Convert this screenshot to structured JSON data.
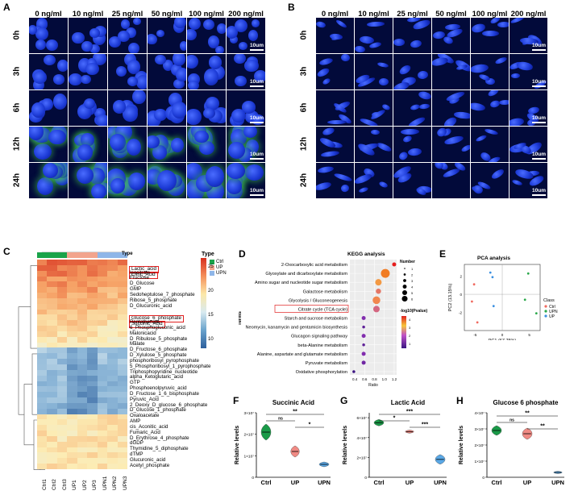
{
  "panels": {
    "A": "A",
    "B": "B",
    "C": "C",
    "D": "D",
    "E": "E",
    "F": "F",
    "G": "G",
    "H": "H"
  },
  "microscopy": {
    "concentrations": [
      "0 ng/ml",
      "10 ng/ml",
      "25 ng/ml",
      "50 ng/ml",
      "100 ng/ml",
      "200 ng/ml"
    ],
    "timepoints": [
      "0h",
      "3h",
      "6h",
      "12h",
      "24h"
    ],
    "scale_bar": "10um"
  },
  "heatmap": {
    "type_label": "Type",
    "legend_title": "Type",
    "legend_items": [
      {
        "label": "Ctrl",
        "color": "#1aa34a"
      },
      {
        "label": "UP",
        "color": "#f2a48d"
      },
      {
        "label": "UPN",
        "color": "#8fb6e8"
      }
    ],
    "scale_ticks": [
      "25",
      "20",
      "15",
      "10"
    ],
    "columns": [
      "Ctrl1",
      "Ctrl2",
      "Ctrl3",
      "UP1",
      "UP2",
      "UP3",
      "UPN1",
      "UPN2",
      "UPN3"
    ],
    "rows": [
      "Lactic_acid",
      "Citric_Acid",
      "Isocitrate",
      "Fructose",
      "D_Glucose",
      "GMP",
      "Sedoheptulose_7_phosphate",
      "Ribose_5_phosphate",
      "D_Glucuronic_acid",
      "Glucose_6_phosphate",
      "Succinic_Acid",
      "Pantothenate",
      "6_Phosphogluconic_acid",
      "Malonicacid",
      "D_Ribulose_5_phosphate",
      "Malate",
      "D_Fructose_6_phosphate",
      "D_Xylulose_5_phosphate",
      "phosphoribosyl_pyrophosphate",
      "5_Phosphoribosyl_1_pyrophosphate",
      "Triphosphopyridine_nucleotide",
      "alpha_Ketoglutaric_acid",
      "GTP",
      "Phosphoenolpyruvic_acid",
      "D_Fructose_1_6_bisphosphate",
      "Pyruvic_Acid",
      "2_Deoxy_D_glucose_6_phosphate",
      "D_Glucose_1_phosphate",
      "Oxaloacetate",
      "AMP",
      "cis_Aconitic_acid",
      "Fumaric_Acid",
      "D_Erythrose_4_phosphate",
      "dGDP",
      "Thymidine_5_diphosphate",
      "dTMP",
      "Glucuronic_acid",
      "Acetyl_phosphate"
    ],
    "highlighted_rows": [
      "Lactic_acid",
      "Citric_Acid",
      "Glucose_6_phosphate",
      "Succinic_Acid"
    ]
  },
  "kegg": {
    "title": "KEGG analysis",
    "xlabel": "Ratio",
    "ylabel": "Terms",
    "x_ticks": [
      "0.4",
      "0.6",
      "0.8",
      "1.0",
      "1.2"
    ],
    "size_legend_title": "Number",
    "size_ticks": [
      "1",
      "2",
      "3",
      "4",
      "5",
      "6"
    ],
    "color_legend_title": "-log10(Pvalue)",
    "color_ticks": [
      "4",
      "3",
      "2",
      "1"
    ],
    "highlighted_term": "Citrate cycle (TCA cycle)"
  },
  "pca": {
    "title": "PCA analysis",
    "xlabel": "PC1 (67.75%)",
    "ylabel": "PC2 (13.15%)",
    "x_ticks": [
      "-5",
      "0",
      "5"
    ],
    "y_ticks": [
      "2",
      "0",
      "-2"
    ],
    "legend_title": "Class",
    "legend": [
      {
        "label": "Ctrl",
        "color": "#f06a60"
      },
      {
        "label": "UPN",
        "color": "#2aa84a"
      },
      {
        "label": "UP",
        "color": "#3a8fe0"
      }
    ]
  },
  "chart_data": [
    {
      "type": "bar",
      "title": "KEGG analysis",
      "categories": [
        "2-Oxocarboxylic acid metabolism",
        "Glyoxylate and dicarboxylate metabolism",
        "Amino sugar and nucleotide sugar metabolism",
        "Galactose metabolism",
        "Glycolysis / Gluconeogenesis",
        "Citrate cycle (TCA cycle)",
        "Starch and sucrose metabolism",
        "Neomycin, kanamycin and gentamicin biosynthesis",
        "Glucagon signaling pathway",
        "beta-Alanine metabolism",
        "Alanine, aspartate and glutamate metabolism",
        "Pyruvate metabolism",
        "Oxidative phosphorylation"
      ],
      "ratio": [
        1.2,
        1.02,
        0.88,
        0.88,
        0.84,
        0.84,
        0.58,
        0.58,
        0.58,
        0.58,
        0.58,
        0.58,
        0.38
      ],
      "number": [
        2,
        6,
        4,
        3,
        5,
        4,
        2,
        1,
        2,
        1,
        2,
        2,
        1
      ],
      "neglog10p": [
        4.4,
        4.0,
        3.2,
        2.8,
        3.0,
        2.6,
        1.6,
        1.2,
        1.6,
        1.2,
        1.6,
        1.4,
        0.8
      ],
      "xlabel": "Ratio",
      "ylabel": "Terms",
      "xlim": [
        0.3,
        1.25
      ]
    },
    {
      "type": "scatter",
      "title": "PCA analysis",
      "xlabel": "PC1 (67.75%)",
      "ylabel": "PC2 (13.15%)",
      "xlim": [
        -7,
        7
      ],
      "ylim": [
        -4,
        3.3
      ],
      "series": [
        {
          "name": "Ctrl",
          "x": [
            -5.2,
            -5.6,
            -4.6
          ],
          "y": [
            1.1,
            -0.8,
            -3.1
          ]
        },
        {
          "name": "UPN",
          "x": [
            4.8,
            4.2,
            6.3
          ],
          "y": [
            2.3,
            -0.6,
            -2.1
          ]
        },
        {
          "name": "UP",
          "x": [
            -2.2,
            -1.8,
            -1.6
          ],
          "y": [
            2.4,
            1.9,
            -1.3
          ]
        }
      ]
    },
    {
      "type": "area",
      "title": "Succinic Acid",
      "categories": [
        "Ctrl",
        "UP",
        "UPN"
      ],
      "values": [
        2.1,
        1.2,
        0.6
      ],
      "ylabel": "Relative levels",
      "yticks": [
        "0",
        "1×10⁷",
        "2×10⁷",
        "3×10⁷"
      ],
      "ylim": [
        0,
        3
      ],
      "significance": [
        {
          "pair": "Ctrl-UP",
          "label": "ns"
        },
        {
          "pair": "Ctrl-UPN",
          "label": "**"
        },
        {
          "pair": "UP-UPN",
          "label": "*"
        }
      ]
    },
    {
      "type": "area",
      "title": "Lactic Acid",
      "categories": [
        "Ctrl",
        "UP",
        "UPN"
      ],
      "values": [
        5.5,
        4.6,
        1.8
      ],
      "ylabel": "Relative levels",
      "yticks": [
        "0",
        "2×10⁷",
        "4×10⁷",
        "6×10⁷"
      ],
      "ylim": [
        0,
        6.5
      ],
      "significance": [
        {
          "pair": "Ctrl-UP",
          "label": "*"
        },
        {
          "pair": "Ctrl-UPN",
          "label": "***"
        },
        {
          "pair": "UP-UPN",
          "label": "***"
        }
      ]
    },
    {
      "type": "area",
      "title": "Glucose 6 phosphate",
      "categories": [
        "Ctrl",
        "UP",
        "UPN"
      ],
      "values": [
        2.9,
        2.7,
        0.3
      ],
      "ylabel": "Relative levels",
      "yticks": [
        "0",
        "1×10⁷",
        "2×10⁷",
        "3×10⁷",
        "4×10⁷"
      ],
      "ylim": [
        0,
        4
      ],
      "significance": [
        {
          "pair": "Ctrl-UP",
          "label": "ns"
        },
        {
          "pair": "Ctrl-UPN",
          "label": "**"
        },
        {
          "pair": "UP-UPN",
          "label": "**"
        }
      ]
    }
  ]
}
